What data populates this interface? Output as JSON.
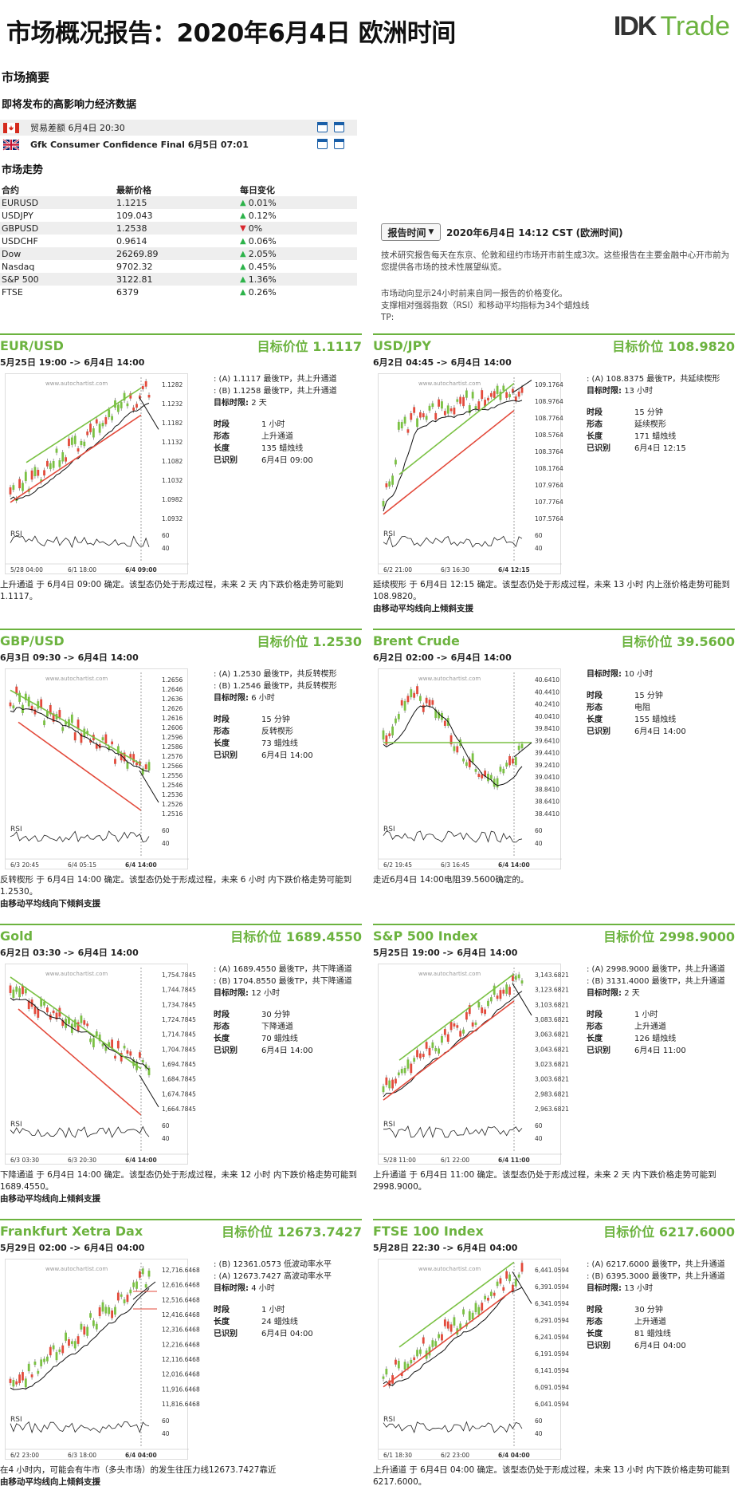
{
  "header": {
    "title": "市场概况报告：2020年6月4日 欧洲时间",
    "logo_mark": "IDK",
    "logo_text": "Trade"
  },
  "summary": {
    "heading": "市场摘要",
    "events_heading": "即将发布的高影响力经济数据",
    "events": [
      {
        "flag": "canada",
        "text": "贸易差额 6月4日 20:30"
      },
      {
        "flag": "uk",
        "text": "Gfk Consumer Confidence Final 6月5日 07:01"
      }
    ],
    "trend_heading": "市场走势",
    "cols": [
      "合约",
      "最新价格",
      "每日变化"
    ],
    "rows": [
      {
        "name": "EURUSD",
        "price": "1.1215",
        "dir": "up",
        "chg": "0.01%"
      },
      {
        "name": "USDJPY",
        "price": "109.043",
        "dir": "up",
        "chg": "0.12%"
      },
      {
        "name": "GBPUSD",
        "price": "1.2538",
        "dir": "down",
        "chg": "0%"
      },
      {
        "name": "USDCHF",
        "price": "0.9614",
        "dir": "up",
        "chg": "0.06%"
      },
      {
        "name": "Dow",
        "price": "26269.89",
        "dir": "up",
        "chg": "2.05%"
      },
      {
        "name": "Nasdaq",
        "price": "9702.32",
        "dir": "up",
        "chg": "0.45%"
      },
      {
        "name": "S&P 500",
        "price": "3122.81",
        "dir": "up",
        "chg": "1.36%"
      },
      {
        "name": "FTSE",
        "price": "6379",
        "dir": "up",
        "chg": "0.26%"
      }
    ]
  },
  "report": {
    "button": "报告时间",
    "date": "2020年6月4日 14:12 CST (欧洲时间)",
    "desc1": "技术研究报告每天在东京、伦敦和纽约市场开市前生成3次。这些报告在主要金融中心开市前为您提供各市场的技术性展望纵览。",
    "desc2": "市场动向显示24小时前来自同一报告的价格变化。",
    "desc3": "支撑相对强弱指数（RSI）和移动平均指标为34个蜡烛线",
    "desc4": "TP:"
  },
  "labels": {
    "period": "时段",
    "pattern": "形态",
    "length": "长度",
    "identified": "已识别",
    "target_period": "目标时限:",
    "rsi": "RSI",
    "watermark": "www.autochartist.com"
  },
  "panels": [
    {
      "name": "EUR/USD",
      "target": "目标价位 1.1117",
      "range": "5月25日 19:00 -> 6月4日 14:00",
      "levels": [
        ": (A) 1.1117 最後TP，共上升通道",
        ": (B) 1.1258 最後TP，共上升通道"
      ],
      "horizon": "2 天",
      "period": "1 小时",
      "pattern": "上升通道",
      "length": "135 蜡烛线",
      "identified": "6月4日 09:00",
      "yticks": [
        "1.1282",
        "1.1232",
        "1.1182",
        "1.1132",
        "1.1082",
        "1.1032",
        "1.0982",
        "1.0932"
      ],
      "rsi_ticks": [
        "60",
        "40"
      ],
      "xticks": [
        "5/28 04:00",
        "6/1 18:00",
        "6/4 09:00"
      ],
      "foot": "上升通道 于 6月4日 09:00 确定。该型态仍处于形成过程，未来 2 天 内下跌价格走势可能到 1.1117。",
      "foot_bold": ""
    },
    {
      "name": "USD/JPY",
      "target": "目标价位 108.9820",
      "range": "6月2日 04:45 -> 6月4日 14:00",
      "levels": [
        ": (A) 108.8375 最後TP，共延续楔形"
      ],
      "horizon": "13 小时",
      "period": "15 分钟",
      "pattern": "延续楔形",
      "length": "171 蜡烛线",
      "identified": "6月4日 12:15",
      "yticks": [
        "109.1764",
        "108.9764",
        "108.7764",
        "108.5764",
        "108.3764",
        "108.1764",
        "107.9764",
        "107.7764",
        "107.5764"
      ],
      "rsi_ticks": [
        "60",
        "40"
      ],
      "xticks": [
        "6/2 21:00",
        "6/3 16:30",
        "6/4 12:15"
      ],
      "foot": "延续楔形 于 6月4日 12:15 确定。该型态仍处于形成过程，未来 13 小时 内上涨价格走势可能到 108.9820。",
      "foot_bold": "由移动平均线向上倾斜支援"
    },
    {
      "name": "GBP/USD",
      "target": "目标价位 1.2530",
      "range": "6月3日 09:30 -> 6月4日 14:00",
      "levels": [
        ": (A) 1.2530 最後TP，共反转楔形",
        ": (B) 1.2546 最後TP，共反转楔形"
      ],
      "horizon": "6 小时",
      "period": "15 分钟",
      "pattern": "反转楔形",
      "length": "73 蜡烛线",
      "identified": "6月4日 14:00",
      "yticks": [
        "1.2656",
        "1.2646",
        "1.2636",
        "1.2626",
        "1.2616",
        "1.2606",
        "1.2596",
        "1.2586",
        "1.2576",
        "1.2566",
        "1.2556",
        "1.2546",
        "1.2536",
        "1.2526",
        "1.2516"
      ],
      "rsi_ticks": [
        "60",
        "40"
      ],
      "xticks": [
        "6/3 20:45",
        "6/4 05:15",
        "6/4 14:00"
      ],
      "foot": "反转楔形 于 6月4日 14:00 确定。该型态仍处于形成过程，未来 6 小时 内下跌价格走势可能到 1.2530。",
      "foot_bold": "由移动平均线向下倾斜支援"
    },
    {
      "name": "Brent Crude",
      "target": "目标价位 39.5600",
      "range": "6月2日 02:00 -> 6月4日 14:00",
      "levels": [],
      "horizon": "10 小时",
      "period": "15 分钟",
      "pattern": "电阻",
      "length": "155 蜡烛线",
      "identified": "6月4日 14:00",
      "yticks": [
        "40.6410",
        "40.4410",
        "40.2410",
        "40.0410",
        "39.8410",
        "39.6410",
        "39.4410",
        "39.2410",
        "39.0410",
        "38.8410",
        "38.6410",
        "38.4410"
      ],
      "rsi_ticks": [
        "60",
        "40"
      ],
      "xticks": [
        "6/2 19:45",
        "6/3 16:45",
        "6/4 14:00"
      ],
      "foot": "走近6月4日 14:00电阻39.5600确定的。",
      "foot_bold": ""
    },
    {
      "name": "Gold",
      "target": "目标价位 1689.4550",
      "range": "6月2日 03:30 -> 6月4日 14:00",
      "levels": [
        ": (A) 1689.4550 最後TP，共下降通道",
        ": (B) 1704.8550 最後TP，共下降通道"
      ],
      "horizon": "12 小时",
      "period": "30 分钟",
      "pattern": "下降通道",
      "length": "70 蜡烛线",
      "identified": "6月4日 14:00",
      "yticks": [
        "1,754.7845",
        "1,744.7845",
        "1,734.7845",
        "1,724.7845",
        "1,714.7845",
        "1,704.7845",
        "1,694.7845",
        "1,684.7845",
        "1,674.7845",
        "1,664.7845"
      ],
      "rsi_ticks": [
        "60",
        "40"
      ],
      "xticks": [
        "6/3 03:30",
        "6/3 20:30",
        "6/4 14:00"
      ],
      "foot": "下降通道 于 6月4日 14:00 确定。该型态仍处于形成过程，未来 12 小时 内下跌价格走势可能到 1689.4550。",
      "foot_bold": "由移动平均线向上倾斜支援"
    },
    {
      "name": "S&P 500 Index",
      "target": "目标价位 2998.9000",
      "range": "5月25日 19:00 -> 6月4日 14:00",
      "levels": [
        ": (A) 2998.9000 最後TP，共上升通道",
        ": (B) 3131.4000 最後TP，共上升通道"
      ],
      "horizon": "2 天",
      "period": "1 小时",
      "pattern": "上升通道",
      "length": "126 蜡烛线",
      "identified": "6月4日 11:00",
      "yticks": [
        "3,143.6821",
        "3,123.6821",
        "3,103.6821",
        "3,083.6821",
        "3,063.6821",
        "3,043.6821",
        "3,023.6821",
        "3,003.6821",
        "2,983.6821",
        "2,963.6821"
      ],
      "rsi_ticks": [
        "60",
        "40"
      ],
      "xticks": [
        "5/28 11:00",
        "6/1 22:00",
        "6/4 11:00"
      ],
      "foot": "上升通道 于 6月4日 11:00 确定。该型态仍处于形成过程，未来 2 天 内下跌价格走势可能到 2998.9000。",
      "foot_bold": ""
    },
    {
      "name": "Frankfurt Xetra Dax",
      "target": "目标价位 12673.7427",
      "range": "5月29日 02:00 -> 6月4日 04:00",
      "levels": [
        ": (B) 12361.0573 低波动率水平",
        ": (A) 12673.7427 高波动率水平"
      ],
      "horizon": "4 小时",
      "period": "1 小时",
      "pattern": "",
      "length": "24 蜡烛线",
      "identified": "6月4日 04:00",
      "yticks": [
        "12,716.6468",
        "12,616.6468",
        "12,516.6468",
        "12,416.6468",
        "12,316.6468",
        "12,216.6468",
        "12,116.6468",
        "12,016.6468",
        "11,916.6468",
        "11,816.6468"
      ],
      "rsi_ticks": [
        "60",
        "40"
      ],
      "xticks": [
        "6/2 23:00",
        "6/3 18:00",
        "6/4 04:00"
      ],
      "foot": "在4 小时内，可能会有牛市（多头市场）的发生往压力线12673.7427靠近",
      "foot_bold": "由移动平均线向上倾斜支援"
    },
    {
      "name": "FTSE 100 Index",
      "target": "目标价位 6217.6000",
      "range": "5月28日 22:30 -> 6月4日 04:00",
      "levels": [
        ": (A) 6217.6000 最後TP，共上升通道",
        ": (B) 6395.3000 最後TP，共上升通道"
      ],
      "horizon": "13 小时",
      "period": "30 分钟",
      "pattern": "上升通道",
      "length": "81 蜡烛线",
      "identified": "6月4日 04:00",
      "yticks": [
        "6,441.0594",
        "6,391.0594",
        "6,341.0594",
        "6,291.0594",
        "6,241.0594",
        "6,191.0594",
        "6,141.0594",
        "6,091.0594",
        "6,041.0594"
      ],
      "rsi_ticks": [
        "60",
        "40"
      ],
      "xticks": [
        "6/1 18:30",
        "6/2 23:00",
        "6/4 04:00"
      ],
      "foot": "上升通道 于 6月4日 04:00 确定。该型态仍处于形成过程，未来 13 小时 内下跌价格走势可能到 6217.6000。",
      "foot_bold": ""
    }
  ]
}
